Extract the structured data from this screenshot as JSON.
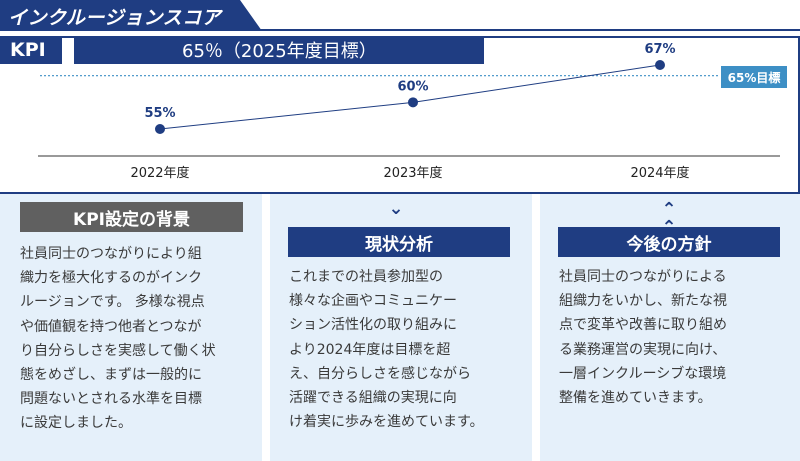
{
  "page_title": "インクルージョンスコア",
  "kpi": {
    "label": "KPI",
    "target_text": "65％（2025年度目標）",
    "target_badge": "65%目標"
  },
  "chart_data": {
    "type": "line",
    "categories": [
      "2022年度",
      "2023年度",
      "2024年度"
    ],
    "values": [
      55,
      60,
      67
    ],
    "data_labels": [
      "55%",
      "60%",
      "67%"
    ],
    "target_value": 65,
    "ylim": [
      45,
      70
    ],
    "title": "",
    "xlabel": "",
    "ylabel": "",
    "colors": {
      "line": "#1f3d82",
      "target": "#3d8fc5"
    }
  },
  "background": {
    "heading": "KPI設定の背景",
    "text": "社員同士のつながりにより組\n織力を極大化するのがインク\nルージョンです。 多様な視点\nや価値観を持つ他者とつなが\nり自分らしさを実感して働く状\n態をめざし、まずは一般的に\n問題ないとされる水準を目標\nに設定しました。"
  },
  "analysis": {
    "heading": "現状分析",
    "arrow_icon": "double-chevron-down-icon",
    "text": "これまでの社員参加型の\n様々な企画やコミュニケー\nション活性化の取り組みに\nより2024年度は目標を超\nえ、自分らしさを感じながら\n活躍できる組織の実現に向\nけ着実に歩みを進めています。"
  },
  "future": {
    "heading": "今後の方針",
    "arrow_icon": "double-chevron-up-icon",
    "text": "社員同士のつながりによる\n組織力をいかし、新たな視\n点で変革や改善に取り組め\nる業務運営の実現に向け、\n一層インクルーシブな環境\n整備を進めていきます。"
  },
  "colors": {
    "navy": "#1f3d82",
    "gray": "#606060",
    "panel": "#e5f0fa",
    "accent": "#3d8fc5"
  }
}
